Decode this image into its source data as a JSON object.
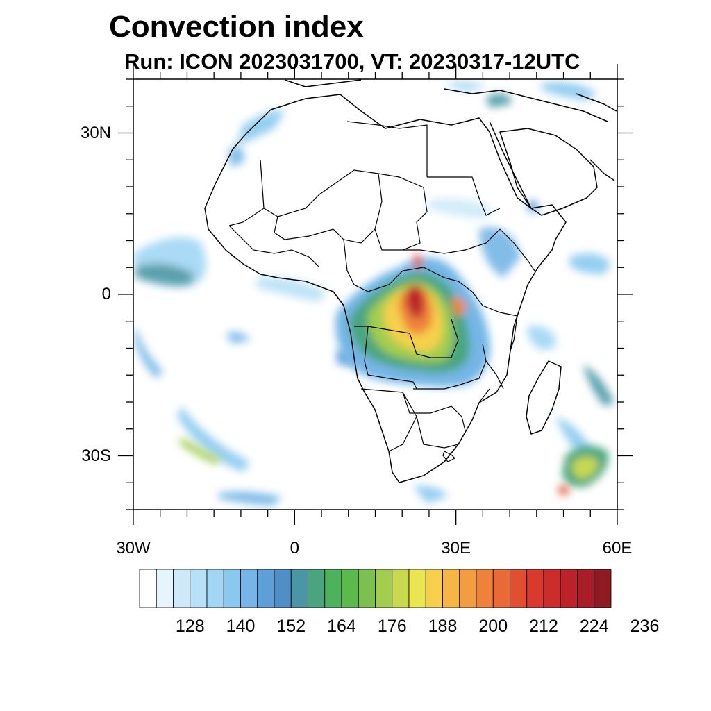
{
  "title": "Convection index",
  "subtitle": "Run: ICON 2023031700,  VT: 20230317-12UTC",
  "map": {
    "lon_range": [
      -30,
      60
    ],
    "lat_range": [
      -40,
      40
    ],
    "lat_labels": [
      {
        "lat": 30,
        "text": "30N"
      },
      {
        "lat": 0,
        "text": "0"
      },
      {
        "lat": -30,
        "text": "30S"
      }
    ],
    "lon_labels": [
      {
        "lon": -30,
        "text": "30W"
      },
      {
        "lon": 0,
        "text": "0"
      },
      {
        "lon": 30,
        "text": "30E"
      },
      {
        "lon": 60,
        "text": "60E"
      }
    ],
    "minor_lat_ticks": [
      -40,
      -35,
      -30,
      -25,
      -20,
      -15,
      -10,
      -5,
      0,
      5,
      10,
      15,
      20,
      25,
      30,
      35,
      40
    ],
    "minor_lon_ticks": [
      -30,
      -25,
      -20,
      -15,
      -10,
      -5,
      0,
      5,
      10,
      15,
      20,
      25,
      30,
      35,
      40,
      45,
      50,
      55,
      60
    ]
  },
  "colorbar": {
    "levels": [
      128,
      140,
      152,
      164,
      176,
      188,
      200,
      212,
      224,
      236
    ],
    "colors": [
      "#ffffff",
      "#e6f4fc",
      "#cfe9f9",
      "#b8e0f7",
      "#a1d6f4",
      "#8ac9ef",
      "#75b6e6",
      "#5f9fd8",
      "#4f8fc6",
      "#4a96a4",
      "#4aa57f",
      "#4cb35c",
      "#5cb94c",
      "#7dc04f",
      "#a3cd4f",
      "#c8d94f",
      "#ebe552",
      "#f6d04c",
      "#f6b646",
      "#f39c40",
      "#ef823a",
      "#ea6a35",
      "#e24f30",
      "#d93a2e",
      "#cd2c2d",
      "#bd212b",
      "#a91c28",
      "#8e1a22"
    ]
  }
}
